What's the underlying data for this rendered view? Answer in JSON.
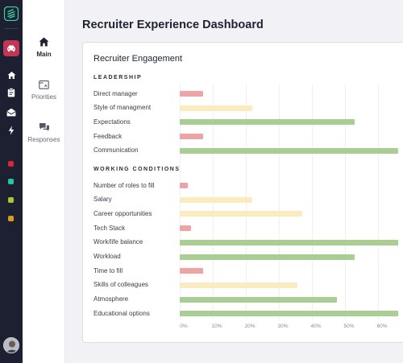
{
  "sidebar": {
    "nav": [
      {
        "label": "Main",
        "icon": "home-icon",
        "active": true
      },
      {
        "label": "Priorities",
        "icon": "priorities-icon",
        "active": false
      },
      {
        "label": "Responses",
        "icon": "chat-bubbles-icon",
        "active": false
      }
    ],
    "rail_icons": [
      "logo-icon",
      "car-icon",
      "home-icon",
      "clipboard-icon",
      "inbox-icon",
      "bolt-icon"
    ],
    "status_dots": [
      "#d8263b",
      "#1fc7a3",
      "#a6c92c",
      "#d99a20"
    ]
  },
  "page": {
    "title": "Recruiter Experience Dashboard"
  },
  "card": {
    "title": "Recruiter Engagement"
  },
  "chart_data": {
    "type": "bar",
    "orientation": "horizontal",
    "x_ticks": [
      "0%",
      "10%",
      "20%",
      "30%",
      "40%",
      "50%",
      "60%"
    ],
    "xlim": [
      0,
      66
    ],
    "grid": true,
    "colors": {
      "low": "#eea4a4",
      "medium": "#fcebc0",
      "high": "#a9cd93"
    },
    "sections": [
      {
        "label": "LEADERSHIP",
        "rows": [
          {
            "label": "Direct manager",
            "value": 7,
            "level": "low"
          },
          {
            "label": "Style of managment",
            "value": 22,
            "level": "medium"
          },
          {
            "label": "Expectations",
            "value": 53,
            "level": "high"
          },
          {
            "label": "Feedback",
            "value": 7,
            "level": "low"
          },
          {
            "label": "Communication",
            "value": 66,
            "level": "high"
          }
        ]
      },
      {
        "label": "WORKING CONDITIONS",
        "rows": [
          {
            "label": "Number of roles to fill",
            "value": 2.5,
            "level": "low"
          },
          {
            "label": "Salary",
            "value": 22,
            "level": "medium"
          },
          {
            "label": "Career opportunities",
            "value": 37,
            "level": "medium"
          },
          {
            "label": "Tech Stack",
            "value": 3.5,
            "level": "low"
          },
          {
            "label": "Work/life balance",
            "value": 66,
            "level": "high"
          },
          {
            "label": "Workload",
            "value": 53,
            "level": "high"
          },
          {
            "label": "Time to fill",
            "value": 7,
            "level": "low"
          },
          {
            "label": "Skills of colleagues",
            "value": 35.5,
            "level": "medium"
          },
          {
            "label": "Atmosphere",
            "value": 47.5,
            "level": "high"
          },
          {
            "label": "Educational options",
            "value": 66,
            "level": "high"
          }
        ]
      }
    ]
  }
}
